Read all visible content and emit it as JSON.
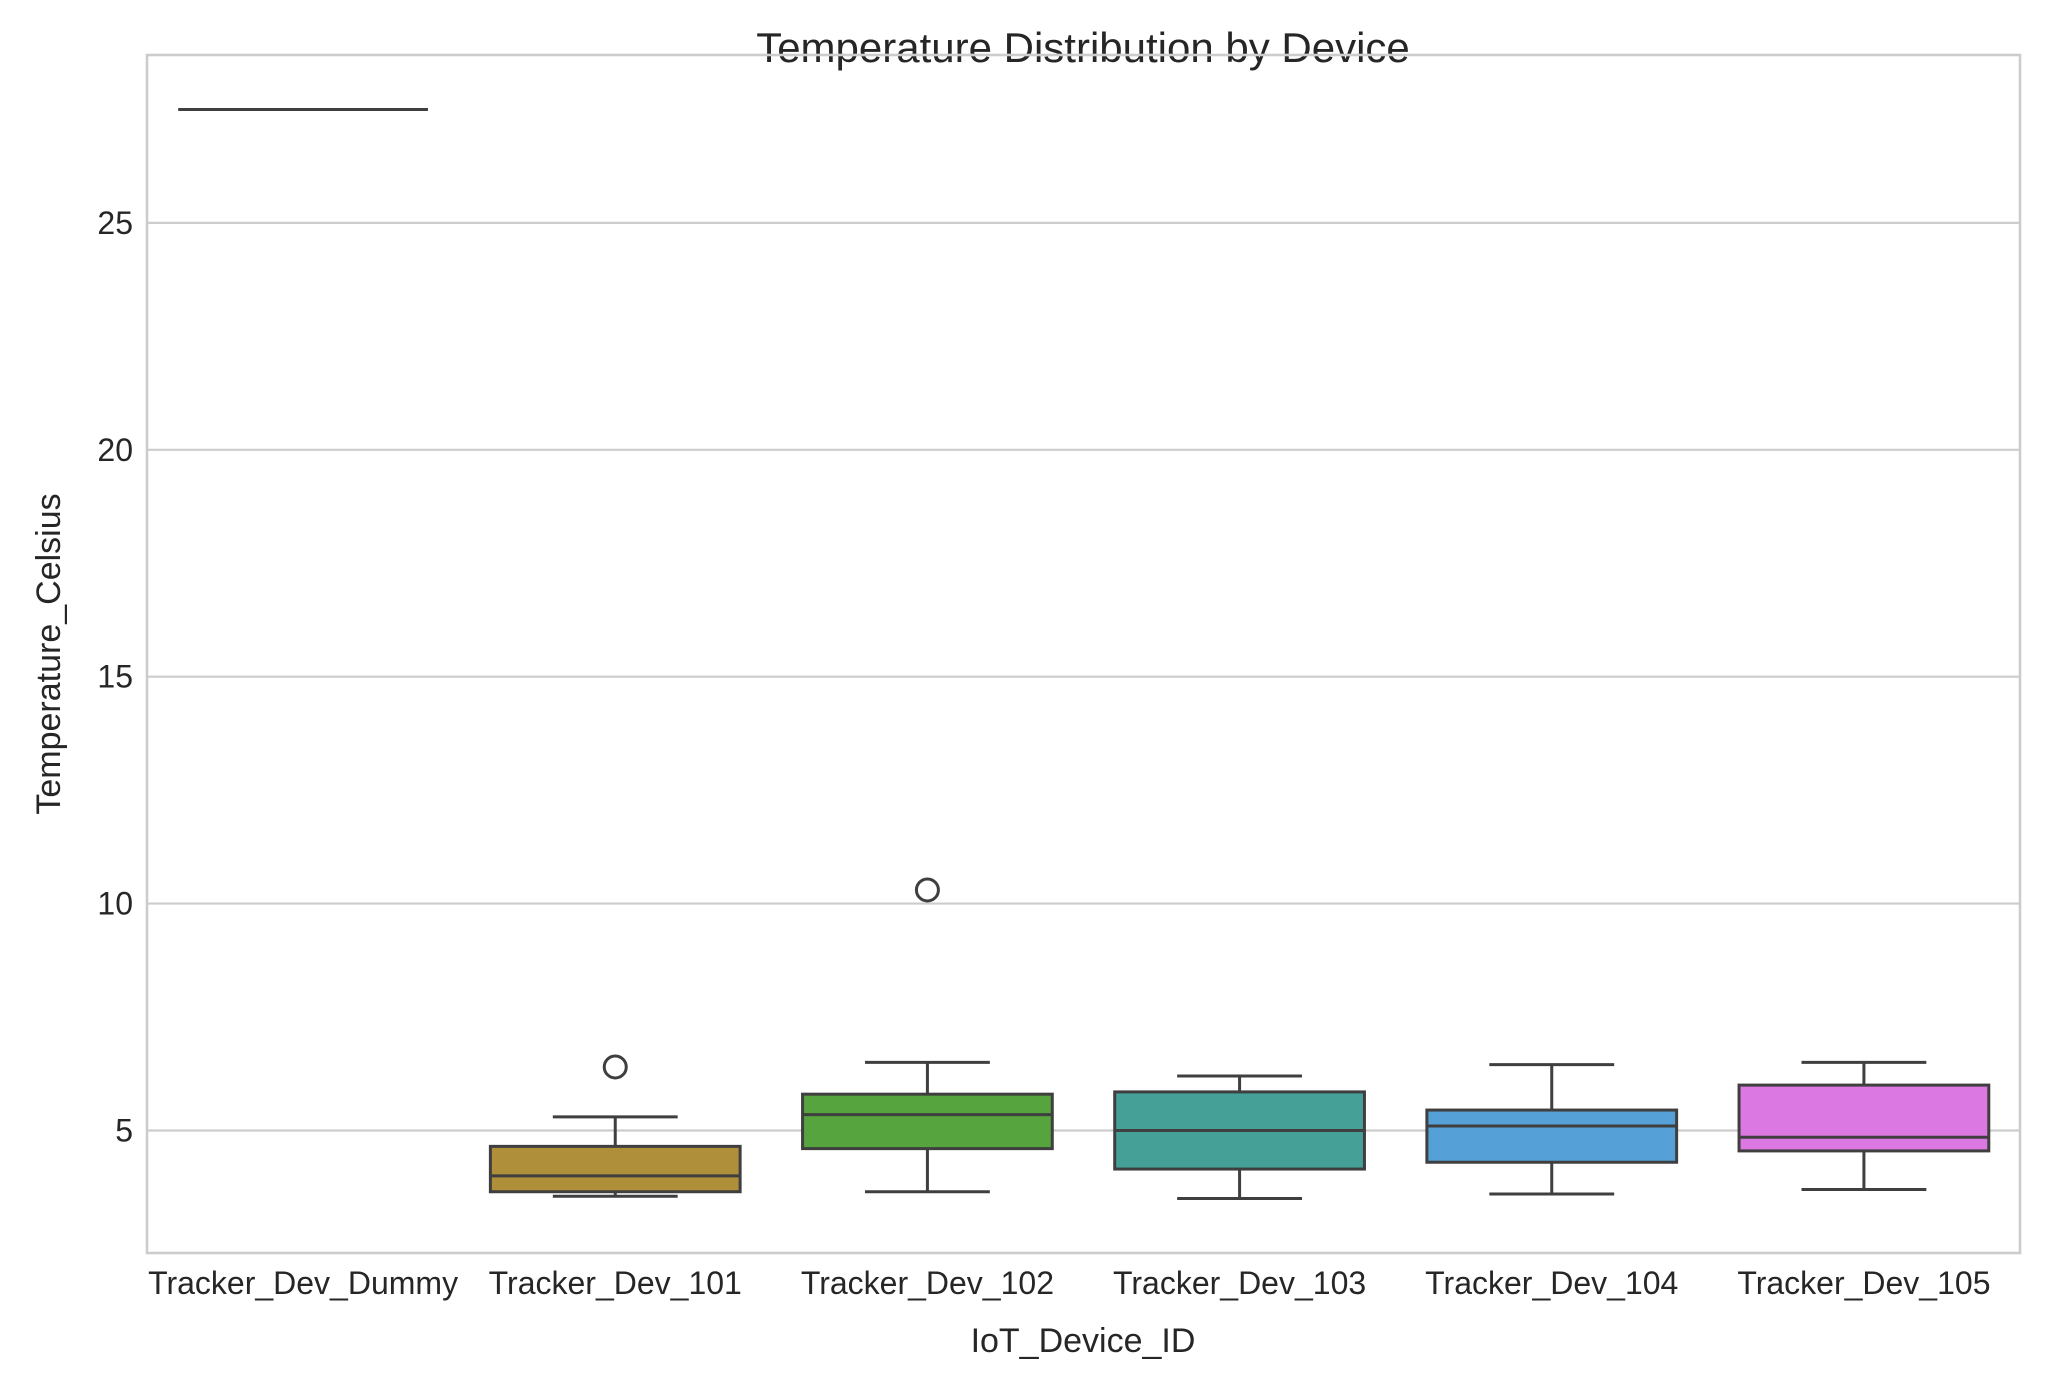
{
  "chart_data": {
    "type": "box",
    "title": "Temperature Distribution by Device",
    "xlabel": "IoT_Device_ID",
    "ylabel": "Temperature_Celsius",
    "ylim": [
      2.3,
      28.7
    ],
    "yticks": [
      5,
      10,
      15,
      20,
      25
    ],
    "grid": "horizontal",
    "legend": "none",
    "categories": [
      "Tracker_Dev_Dummy",
      "Tracker_Dev_101",
      "Tracker_Dev_102",
      "Tracker_Dev_103",
      "Tracker_Dev_104",
      "Tracker_Dev_105"
    ],
    "boxes": [
      {
        "name": "Tracker_Dev_Dummy",
        "color": "#ffffff",
        "whisker_low": 27.5,
        "q1": 27.5,
        "median": 27.5,
        "q3": 27.5,
        "whisker_high": 27.5,
        "fliers": []
      },
      {
        "name": "Tracker_Dev_101",
        "color": "#b08f3a",
        "whisker_low": 3.55,
        "q1": 3.65,
        "median": 4.0,
        "q3": 4.65,
        "whisker_high": 5.3,
        "fliers": [
          6.4
        ]
      },
      {
        "name": "Tracker_Dev_102",
        "color": "#55a43e",
        "whisker_low": 3.65,
        "q1": 4.6,
        "median": 5.35,
        "q3": 5.8,
        "whisker_high": 6.5,
        "fliers": [
          10.3
        ]
      },
      {
        "name": "Tracker_Dev_103",
        "color": "#45a097",
        "whisker_low": 3.5,
        "q1": 4.15,
        "median": 5.0,
        "q3": 5.85,
        "whisker_high": 6.2,
        "fliers": []
      },
      {
        "name": "Tracker_Dev_104",
        "color": "#55a0d6",
        "whisker_low": 3.6,
        "q1": 4.3,
        "median": 5.1,
        "q3": 5.45,
        "whisker_high": 6.45,
        "fliers": []
      },
      {
        "name": "Tracker_Dev_105",
        "color": "#dc78e2",
        "whisker_low": 3.7,
        "q1": 4.55,
        "median": 4.85,
        "q3": 6.0,
        "whisker_high": 6.5,
        "fliers": []
      }
    ]
  }
}
